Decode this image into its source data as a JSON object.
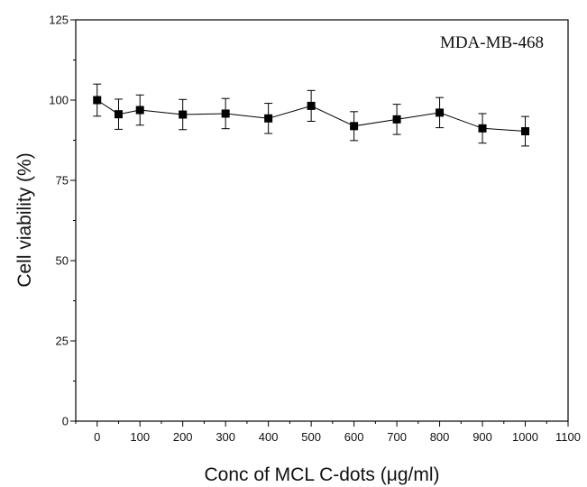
{
  "chart_data": {
    "type": "scatter",
    "title": "",
    "annotation": "MDA-MB-468",
    "xlabel": "Conc of MCL C-dots (μg/ml)",
    "ylabel": "Cell viability (%)",
    "xlim": [
      -50,
      1100
    ],
    "ylim": [
      0,
      125
    ],
    "xticks": [
      0,
      100,
      200,
      300,
      400,
      500,
      600,
      700,
      800,
      900,
      1000,
      1100
    ],
    "yticks": [
      0,
      25,
      50,
      75,
      100,
      125
    ],
    "grid": false,
    "legend": "none",
    "marker": "square",
    "line": true,
    "series": [
      {
        "x": [
          0,
          50,
          100,
          200,
          300,
          400,
          500,
          600,
          700,
          800,
          900,
          1000
        ],
        "y": [
          100,
          95.6,
          96.9,
          95.5,
          95.8,
          94.3,
          98.2,
          91.9,
          94.0,
          96.1,
          91.2,
          90.3
        ],
        "error": [
          5,
          4.7,
          4.7,
          4.7,
          4.7,
          4.7,
          4.8,
          4.5,
          4.7,
          4.7,
          4.6,
          4.6
        ]
      }
    ]
  },
  "colors": {
    "line": "#000000",
    "marker": "#000000",
    "axis": "#000000"
  }
}
